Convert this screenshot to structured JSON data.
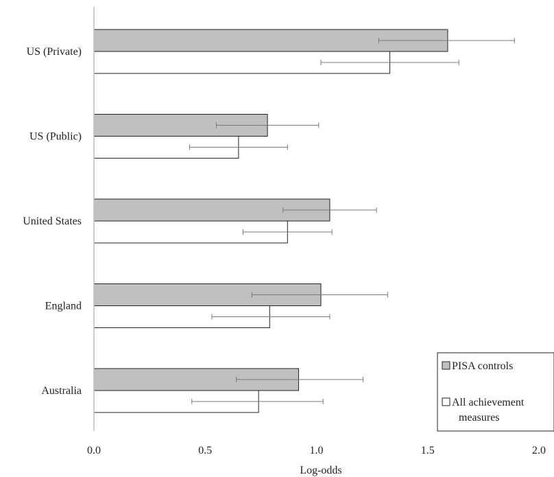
{
  "chart_data": {
    "type": "bar",
    "orientation": "horizontal",
    "title": "",
    "xlabel": "Log-odds",
    "ylabel": "",
    "xlim": [
      0.0,
      2.0
    ],
    "xticks": [
      "0.0",
      "0.5",
      "1.0",
      "1.5",
      "2.0"
    ],
    "categories": [
      "US (Private)",
      "US (Public)",
      "United States",
      "England",
      "Australia"
    ],
    "series": [
      {
        "name": "PISA controls",
        "color": "#c0c0c0",
        "values": [
          1.59,
          0.78,
          1.06,
          1.02,
          0.92
        ],
        "ci_low": [
          1.28,
          0.55,
          0.85,
          0.71,
          0.64
        ],
        "ci_high": [
          1.89,
          1.01,
          1.27,
          1.32,
          1.21
        ]
      },
      {
        "name": "All achievement\nmeasures",
        "color": "#ffffff",
        "values": [
          1.33,
          0.65,
          0.87,
          0.79,
          0.74
        ],
        "ci_low": [
          1.02,
          0.43,
          0.67,
          0.53,
          0.44
        ],
        "ci_high": [
          1.64,
          0.87,
          1.07,
          1.06,
          1.03
        ]
      }
    ],
    "legend": {
      "position": "bottom-right",
      "items": [
        "PISA controls",
        "All achievement",
        "measures"
      ]
    },
    "grid": false
  }
}
